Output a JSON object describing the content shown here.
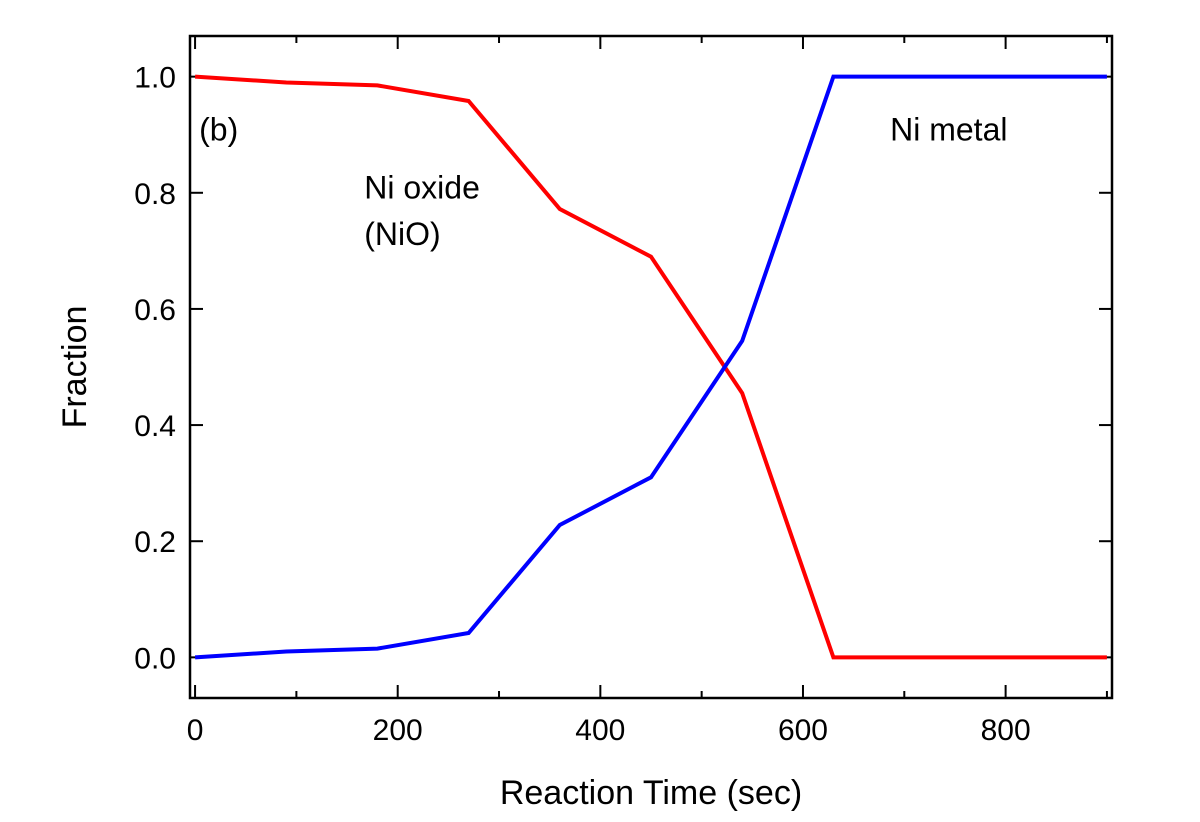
{
  "chart_data": {
    "type": "line",
    "xlabel": "Reaction Time (sec)",
    "ylabel": "Fraction",
    "xlim": [
      -5,
      905
    ],
    "ylim": [
      -0.07,
      1.07
    ],
    "xticks_major": [
      0,
      200,
      400,
      600,
      800
    ],
    "xtick_labels": [
      "0",
      "200",
      "400",
      "600",
      "800"
    ],
    "xticks_minor": [
      100,
      300,
      500,
      700,
      900
    ],
    "yticks_major": [
      0.0,
      0.2,
      0.4,
      0.6,
      0.8,
      1.0
    ],
    "ytick_labels": [
      "0.0",
      "0.2",
      "0.4",
      "0.6",
      "0.8",
      "1.0"
    ],
    "grid": false,
    "series": [
      {
        "name": "Ni oxide (NiO)",
        "color": "#ff0000",
        "x": [
          0,
          90,
          180,
          270,
          360,
          450,
          540,
          630,
          900
        ],
        "y": [
          1.0,
          0.99,
          0.985,
          0.958,
          0.772,
          0.69,
          0.455,
          0.0,
          0.0
        ]
      },
      {
        "name": "Ni metal",
        "color": "#0000ff",
        "x": [
          0,
          90,
          180,
          270,
          360,
          450,
          540,
          630,
          900
        ],
        "y": [
          0.0,
          0.01,
          0.015,
          0.042,
          0.228,
          0.31,
          0.545,
          1.0,
          1.0
        ]
      }
    ],
    "annotations": [
      {
        "id": "panel",
        "text": "(b)",
        "x": 4,
        "y": 0.89
      },
      {
        "id": "oxide-1",
        "text": "Ni oxide",
        "x": 167,
        "y": 0.79
      },
      {
        "id": "oxide-2",
        "text": "(NiO)",
        "x": 167,
        "y": 0.71
      },
      {
        "id": "metal",
        "text": "Ni metal",
        "x": 686,
        "y": 0.89
      }
    ]
  }
}
